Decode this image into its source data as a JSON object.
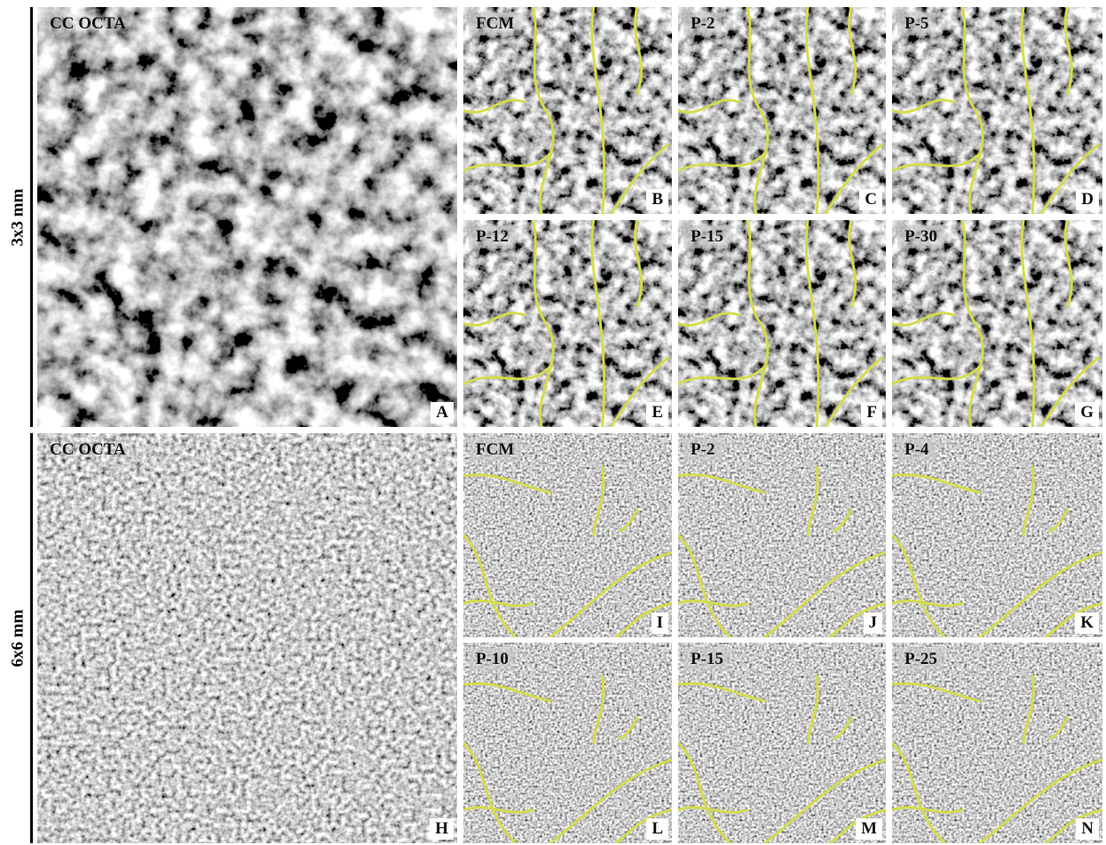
{
  "groups": [
    {
      "label": "3x3 mm",
      "main": {
        "title": "CC OCTA",
        "letter": "A"
      },
      "panels": [
        {
          "title": "FCM",
          "letter": "B"
        },
        {
          "title": "P-2",
          "letter": "C"
        },
        {
          "title": "P-5",
          "letter": "D"
        },
        {
          "title": "P-12",
          "letter": "E"
        },
        {
          "title": "P-15",
          "letter": "F"
        },
        {
          "title": "P-30",
          "letter": "G"
        }
      ]
    },
    {
      "label": "6x6 mm",
      "main": {
        "title": "CC OCTA",
        "letter": "H"
      },
      "panels": [
        {
          "title": "FCM",
          "letter": "I"
        },
        {
          "title": "P-2",
          "letter": "J"
        },
        {
          "title": "P-4",
          "letter": "K"
        },
        {
          "title": "P-10",
          "letter": "L"
        },
        {
          "title": "P-15",
          "letter": "M"
        },
        {
          "title": "P-25",
          "letter": "N"
        }
      ]
    }
  ]
}
